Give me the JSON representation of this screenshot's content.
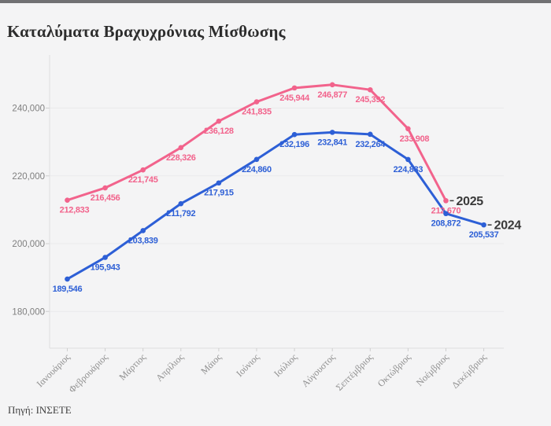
{
  "page": {
    "title": "Καταλύματα Βραχυχρόνιας Μίσθωσης",
    "source": "Πηγή: ΙΝΣΕΤΕ"
  },
  "colors": {
    "background": "#f4f4f5",
    "top_bar": "#717173",
    "title_text": "#2d2d2d",
    "grid_line": "#eaeaeb",
    "axis_line": "#dedee0",
    "tick_mark": "#cfcfcf",
    "y_tick_text": "#7f7f7f",
    "month_text": "#8f8f8f",
    "end_label_text": "#3a3a3a",
    "source_text": "#3f3f3f",
    "series_2025": "#f2638c",
    "series_2024": "#2d5fd6"
  },
  "chart_data": {
    "type": "line",
    "title": "Καταλύματα Βραχυχρόνιας Μίσθωσης",
    "categories": [
      "Ιανουάριος",
      "Φεβρουάριος",
      "Μάρτιος",
      "Απρίλιος",
      "Μάιος",
      "Ιούνιος",
      "Ιούλιος",
      "Αύγουστος",
      "Σεπτέμβριος",
      "Οκτώβριος",
      "Νοέμβριος",
      "Δεκέμβριος"
    ],
    "series": [
      {
        "name": "2025",
        "color": "#f2638c",
        "values": [
          212833,
          216456,
          221745,
          228326,
          236128,
          241835,
          245944,
          246877,
          245392,
          233908,
          212670,
          null
        ]
      },
      {
        "name": "2024",
        "color": "#2d5fd6",
        "values": [
          189546,
          195943,
          203839,
          211792,
          217915,
          224860,
          232196,
          232841,
          232264,
          224833,
          208872,
          205537
        ]
      }
    ],
    "yticks": [
      180000,
      200000,
      220000,
      240000
    ],
    "ytick_labels": [
      "180,000",
      "200,000",
      "220,000",
      "240,000"
    ],
    "ylim": [
      172000,
      252000
    ],
    "grid": true,
    "data_labels": true,
    "legend_position": "end-of-line",
    "source": "Πηγή: ΙΝΣΕΤΕ"
  }
}
